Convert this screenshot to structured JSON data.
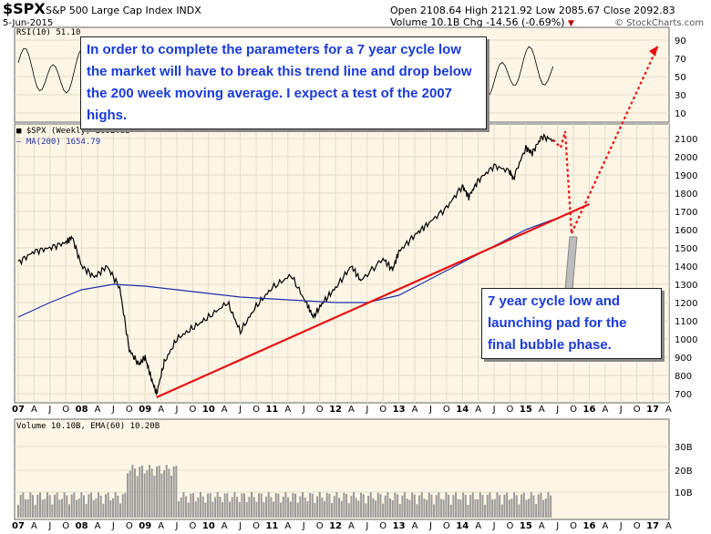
{
  "header": {
    "symbol": "$SPX",
    "name": "S&P 500 Large Cap Index",
    "exchange": "INDX",
    "date": "5-Jun-2015",
    "open": "Open 2108.64",
    "high": "High 2121.92",
    "low": "Low 2085.67",
    "close": "Close 2092.83",
    "volume": "Volume 10.1B",
    "chg": "Chg -14.56 (-0.69%)",
    "source": "© StockCharts.com"
  },
  "panels": {
    "rsi_label": "RSI(10) 51.10",
    "price_label": "$SPX (Weekly) 2092.83",
    "ma_label": "MA(200) 1654.79",
    "volume_label": "Volume 10.10B, EMA(60) 10.20B"
  },
  "annotations": {
    "top_text": "In order to complete the parameters for a 7 year cycle low the market will have to break this trend line and drop below the 200 week moving average. I expect a test of the 2007 highs.",
    "bottom_text": "7 year cycle low and launching pad for the final bubble phase."
  },
  "colors": {
    "panel_bg": "#fdf6e6",
    "price_line": "#000000",
    "ma_line": "#1f2fa8",
    "trend_line": "#e61212",
    "annotation_text": "#1a3ad8"
  },
  "chart_data": {
    "type": "line",
    "title": "$SPX S&P 500 Large Cap Index (Weekly)",
    "rsi_axis": {
      "ticks": [
        10,
        30,
        50,
        70,
        90
      ]
    },
    "price_axis": {
      "ylim": [
        650,
        2200
      ],
      "ticks": [
        700,
        800,
        900,
        1000,
        1100,
        1200,
        1300,
        1400,
        1500,
        1600,
        1700,
        1800,
        1900,
        2000,
        2100
      ]
    },
    "volume_axis": {
      "ticks": [
        "10B",
        "20B",
        "30B"
      ]
    },
    "x_labels": [
      "07",
      "A",
      "J",
      "O",
      "08",
      "A",
      "J",
      "O",
      "09",
      "A",
      "J",
      "O",
      "10",
      "A",
      "J",
      "O",
      "11",
      "A",
      "J",
      "O",
      "12",
      "A",
      "J",
      "O",
      "13",
      "A",
      "J",
      "O",
      "14",
      "A",
      "J",
      "O",
      "15",
      "A",
      "J",
      "O",
      "16",
      "A",
      "J",
      "O",
      "17",
      "A"
    ],
    "series": [
      {
        "name": "$SPX (Weekly)",
        "x": [
          2007.0,
          2007.25,
          2007.5,
          2007.75,
          2007.85,
          2008.0,
          2008.2,
          2008.4,
          2008.6,
          2008.75,
          2008.9,
          2009.0,
          2009.1,
          2009.18,
          2009.3,
          2009.5,
          2009.75,
          2010.0,
          2010.3,
          2010.5,
          2010.75,
          2011.0,
          2011.3,
          2011.55,
          2011.65,
          2011.8,
          2012.0,
          2012.25,
          2012.4,
          2012.75,
          2012.9,
          2013.0,
          2013.25,
          2013.45,
          2013.75,
          2014.0,
          2014.1,
          2014.25,
          2014.5,
          2014.75,
          2014.8,
          2015.0,
          2015.1,
          2015.25,
          2015.43
        ],
        "values": [
          1420,
          1480,
          1500,
          1530,
          1560,
          1400,
          1340,
          1400,
          1280,
          940,
          860,
          900,
          780,
          700,
          870,
          1000,
          1060,
          1120,
          1200,
          1040,
          1180,
          1280,
          1350,
          1190,
          1120,
          1200,
          1280,
          1400,
          1320,
          1440,
          1380,
          1480,
          1570,
          1630,
          1720,
          1840,
          1780,
          1870,
          1950,
          1920,
          1880,
          2050,
          2020,
          2110,
          2093
        ]
      },
      {
        "name": "MA(200)",
        "x": [
          2007.0,
          2007.5,
          2008.0,
          2008.5,
          2009.0,
          2009.5,
          2010.0,
          2010.5,
          2011.0,
          2011.5,
          2012.0,
          2012.5,
          2013.0,
          2013.5,
          2014.0,
          2014.5,
          2015.0,
          2015.43
        ],
        "values": [
          1120,
          1200,
          1270,
          1300,
          1290,
          1270,
          1250,
          1230,
          1220,
          1210,
          1200,
          1200,
          1240,
          1330,
          1420,
          1510,
          1600,
          1655
        ]
      }
    ],
    "annotations": [
      {
        "name": "trend line",
        "from": [
          2009.18,
          680
        ],
        "to": [
          2016.0,
          1740
        ]
      },
      {
        "name": "projected drop",
        "points": [
          [
            2015.43,
            2093
          ],
          [
            2015.55,
            2050
          ],
          [
            2015.62,
            2140
          ],
          [
            2015.72,
            1580
          ]
        ]
      },
      {
        "name": "projected rally",
        "from": [
          2015.72,
          1580
        ],
        "to": "RSI panel 85"
      }
    ]
  }
}
